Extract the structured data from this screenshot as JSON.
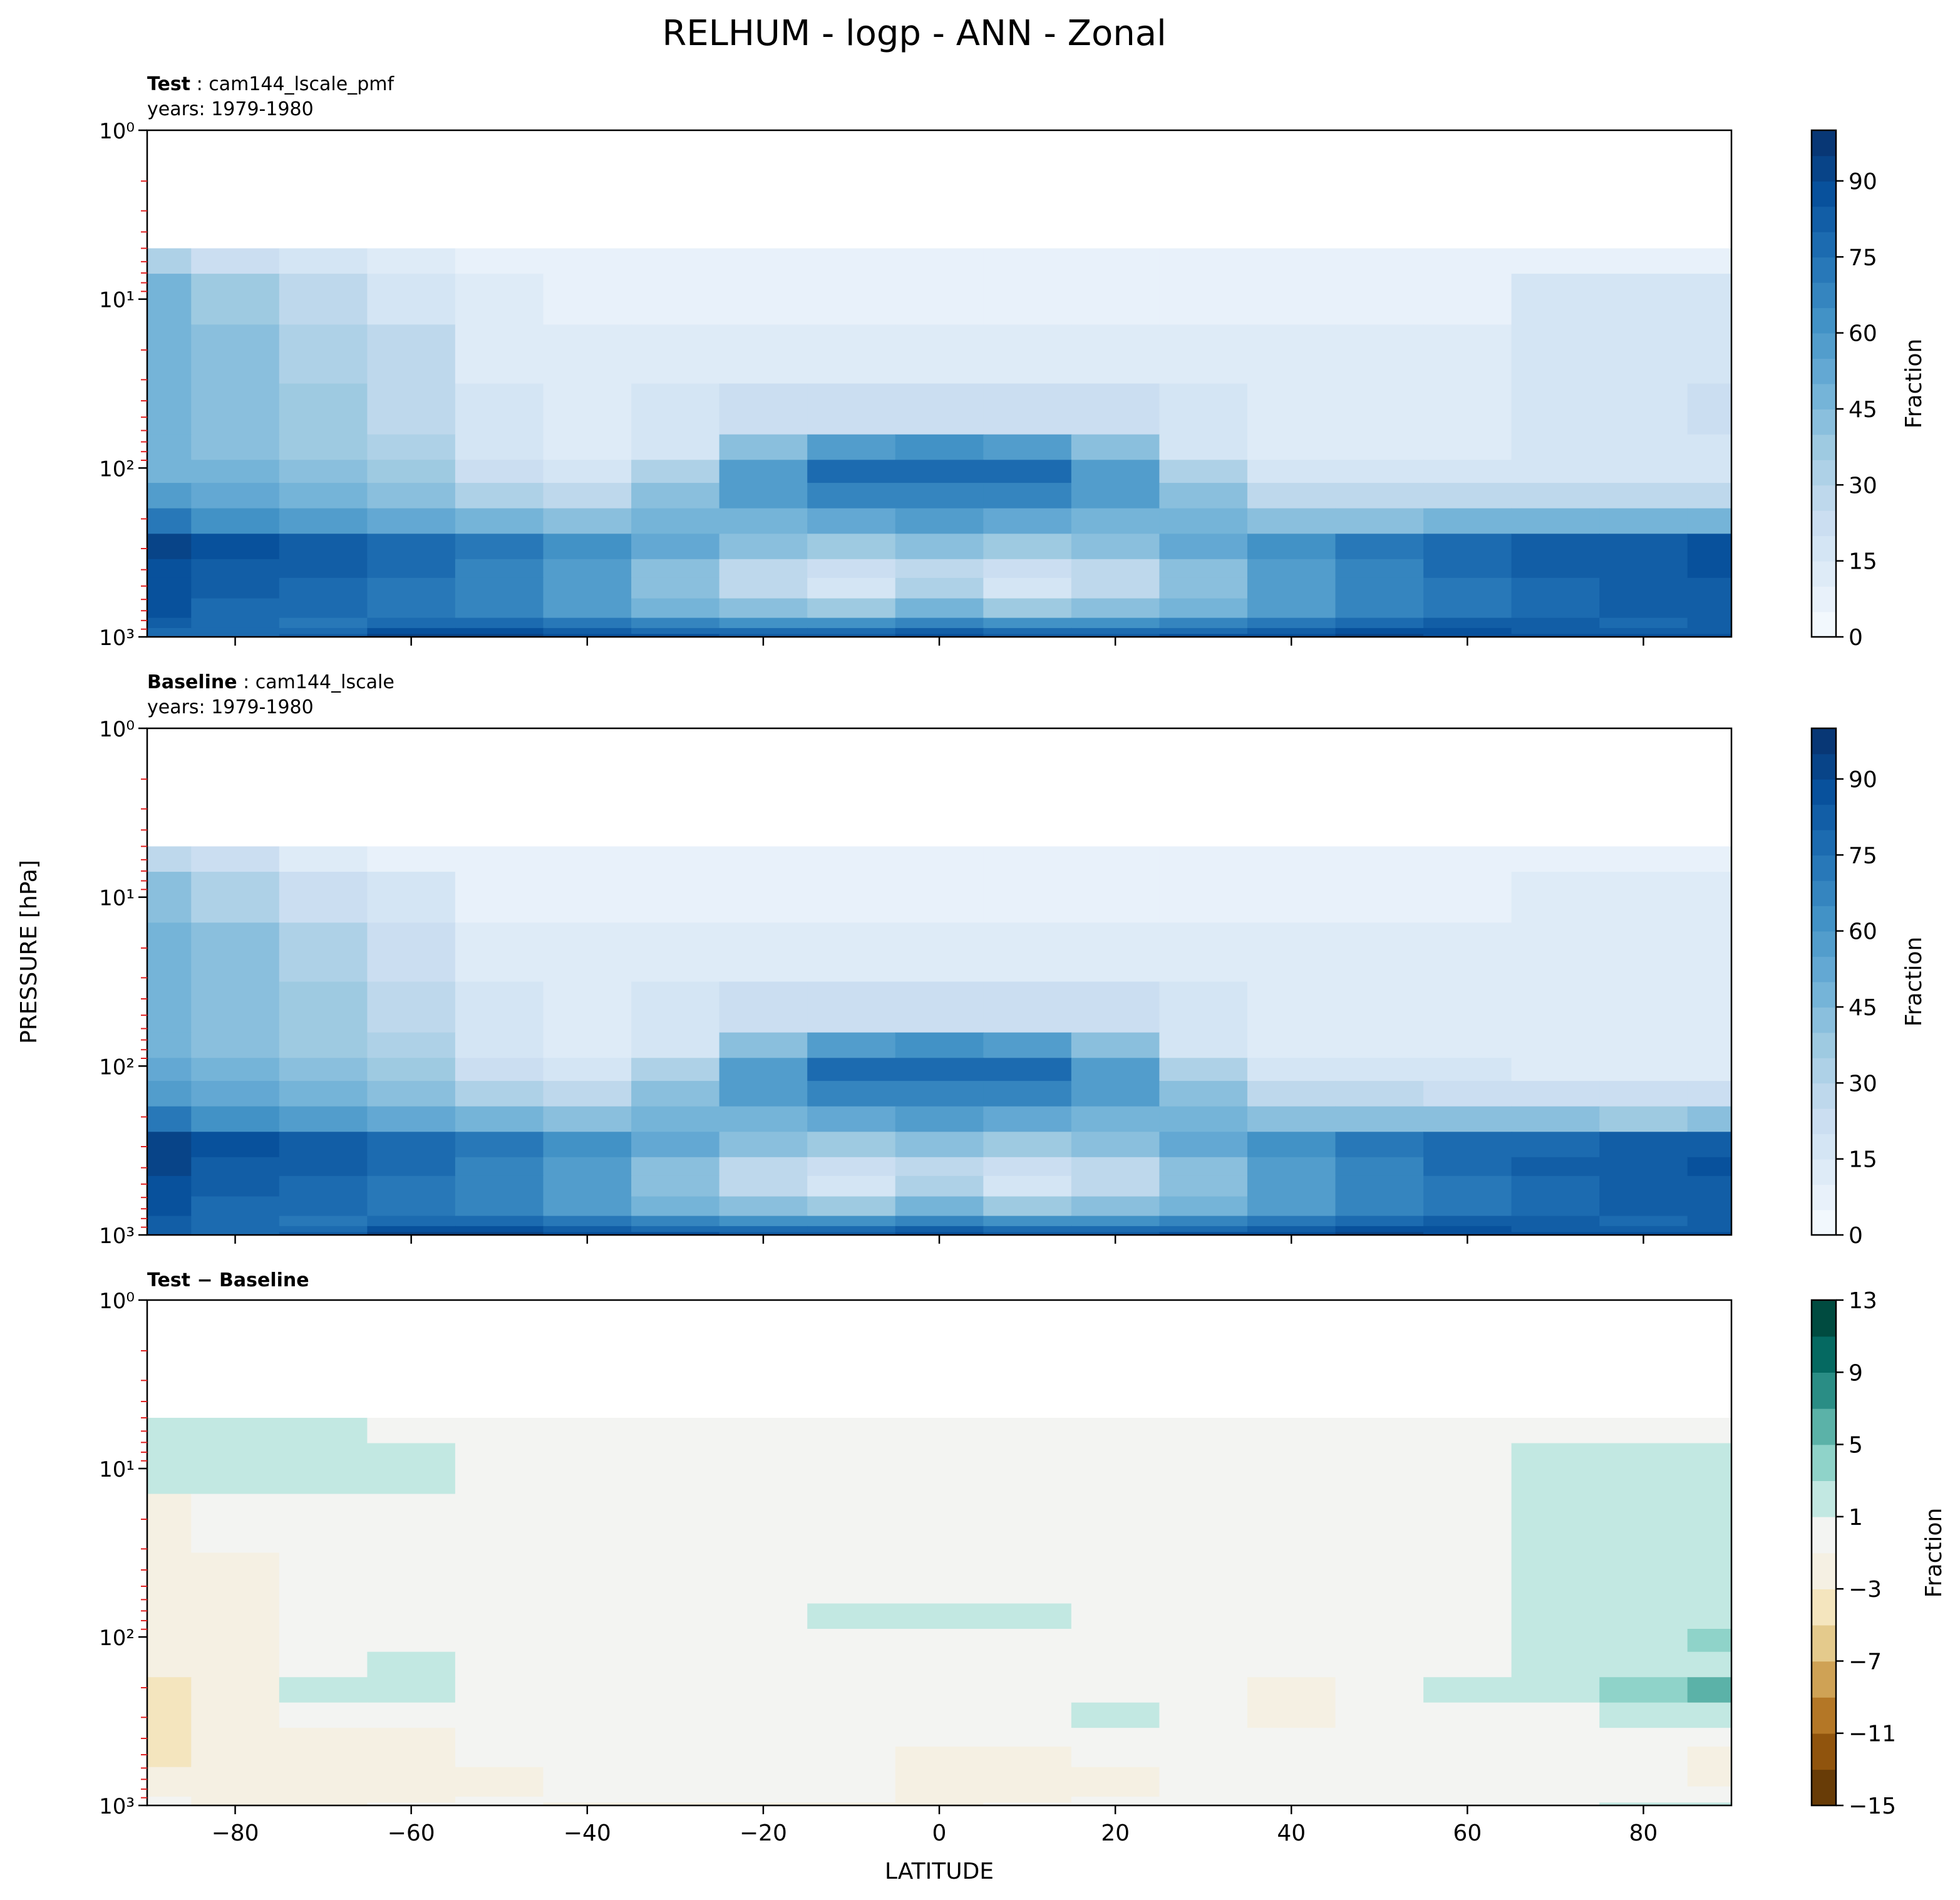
{
  "figure": {
    "title": "RELHUM - logp - ANN - Zonal",
    "ylabel": "PRESSURE [hPa]",
    "xlabel": "LATITUDE",
    "x_ticks": [
      -80,
      -60,
      -40,
      -20,
      0,
      20,
      40,
      60,
      80
    ]
  },
  "chart_data": [
    {
      "type": "heatmap",
      "panel": "test",
      "title_bold": "Test",
      "title_rest": ": cam144_lscale_pmf",
      "subtitle": "years: 1979-1980",
      "xlim": [
        -90,
        90
      ],
      "ylim": [
        1000,
        1
      ],
      "y_scale": "log",
      "y_ticks": [
        1,
        10,
        100,
        1000
      ],
      "y_tick_labels": [
        "10⁰",
        "10¹",
        "10²",
        "10³"
      ],
      "colormap": "Blues",
      "colorbar": {
        "label": "Fraction",
        "min": 0,
        "max": 100,
        "ticks": [
          0,
          15,
          30,
          45,
          60,
          75,
          90
        ]
      },
      "field": {
        "lat": [
          -90,
          -80,
          -70,
          -60,
          -50,
          -40,
          -30,
          -20,
          -10,
          0,
          10,
          20,
          30,
          40,
          50,
          60,
          70,
          80,
          90
        ],
        "lev": [
          5,
          10,
          20,
          50,
          80,
          100,
          150,
          200,
          300,
          400,
          500,
          700,
          850,
          925,
          1000
        ],
        "values": [
          [
            30,
            22,
            15,
            10,
            8,
            7,
            7,
            7,
            7,
            7,
            7,
            7,
            7,
            7,
            7,
            7,
            8,
            8,
            8
          ],
          [
            45,
            35,
            25,
            18,
            10,
            8,
            8,
            8,
            8,
            8,
            8,
            8,
            8,
            8,
            8,
            8,
            15,
            15,
            15
          ],
          [
            45,
            40,
            32,
            25,
            12,
            10,
            10,
            10,
            10,
            10,
            10,
            10,
            10,
            10,
            10,
            10,
            15,
            15,
            18
          ],
          [
            45,
            42,
            35,
            28,
            15,
            12,
            15,
            20,
            22,
            24,
            22,
            20,
            15,
            12,
            12,
            12,
            15,
            15,
            20
          ],
          [
            45,
            42,
            35,
            30,
            15,
            12,
            18,
            40,
            55,
            60,
            55,
            40,
            18,
            12,
            12,
            12,
            15,
            15,
            15
          ],
          [
            48,
            45,
            40,
            35,
            20,
            15,
            30,
            55,
            75,
            78,
            75,
            55,
            30,
            15,
            15,
            15,
            15,
            15,
            18
          ],
          [
            55,
            50,
            48,
            40,
            30,
            28,
            40,
            55,
            65,
            68,
            65,
            55,
            40,
            28,
            25,
            25,
            25,
            25,
            25
          ],
          [
            70,
            62,
            55,
            50,
            45,
            42,
            45,
            45,
            50,
            55,
            50,
            45,
            45,
            42,
            42,
            45,
            45,
            45,
            45
          ],
          [
            90,
            85,
            80,
            75,
            70,
            60,
            50,
            42,
            38,
            40,
            38,
            42,
            50,
            60,
            70,
            75,
            80,
            82,
            85
          ],
          [
            88,
            82,
            80,
            75,
            68,
            55,
            40,
            28,
            22,
            28,
            22,
            28,
            40,
            55,
            68,
            75,
            80,
            82,
            85
          ],
          [
            85,
            80,
            78,
            72,
            65,
            55,
            40,
            25,
            18,
            30,
            18,
            25,
            40,
            55,
            65,
            72,
            78,
            80,
            82
          ],
          [
            85,
            78,
            75,
            72,
            65,
            58,
            48,
            40,
            38,
            45,
            38,
            40,
            48,
            58,
            65,
            72,
            78,
            80,
            82
          ],
          [
            80,
            75,
            72,
            75,
            78,
            72,
            65,
            60,
            62,
            68,
            62,
            60,
            65,
            72,
            78,
            80,
            80,
            78,
            80
          ],
          [
            78,
            75,
            75,
            85,
            88,
            82,
            78,
            75,
            75,
            80,
            75,
            75,
            78,
            82,
            85,
            85,
            82,
            80,
            82
          ],
          [
            78,
            78,
            80,
            90,
            92,
            88,
            85,
            82,
            82,
            88,
            82,
            82,
            85,
            88,
            90,
            88,
            85,
            85,
            88
          ]
        ]
      }
    },
    {
      "type": "heatmap",
      "panel": "baseline",
      "title_bold": "Baseline",
      "title_rest": ": cam144_lscale",
      "subtitle": "years: 1979-1980",
      "xlim": [
        -90,
        90
      ],
      "ylim": [
        1000,
        1
      ],
      "y_scale": "log",
      "y_ticks": [
        1,
        10,
        100,
        1000
      ],
      "y_tick_labels": [
        "10⁰",
        "10¹",
        "10²",
        "10³"
      ],
      "colormap": "Blues",
      "colorbar": {
        "label": "Fraction",
        "min": 0,
        "max": 100,
        "ticks": [
          0,
          15,
          30,
          45,
          60,
          75,
          90
        ]
      },
      "field": {
        "lat": [
          -90,
          -80,
          -70,
          -60,
          -50,
          -40,
          -30,
          -20,
          -10,
          0,
          10,
          20,
          30,
          40,
          50,
          60,
          70,
          80,
          90
        ],
        "lev": [
          5,
          10,
          20,
          50,
          80,
          100,
          150,
          200,
          300,
          400,
          500,
          700,
          850,
          925,
          1000
        ],
        "values": [
          [
            28,
            20,
            13,
            9,
            7,
            7,
            7,
            7,
            7,
            7,
            7,
            7,
            7,
            7,
            7,
            7,
            7,
            7,
            7
          ],
          [
            42,
            33,
            23,
            17,
            9,
            8,
            8,
            8,
            8,
            8,
            8,
            8,
            8,
            8,
            8,
            8,
            10,
            10,
            10
          ],
          [
            48,
            42,
            32,
            24,
            12,
            10,
            10,
            10,
            10,
            10,
            10,
            10,
            10,
            10,
            10,
            10,
            12,
            12,
            12
          ],
          [
            48,
            44,
            36,
            28,
            15,
            12,
            15,
            20,
            22,
            24,
            22,
            20,
            15,
            12,
            12,
            12,
            12,
            12,
            12
          ],
          [
            46,
            43,
            36,
            30,
            15,
            12,
            18,
            40,
            55,
            60,
            55,
            40,
            18,
            12,
            12,
            12,
            12,
            12,
            12
          ],
          [
            50,
            46,
            40,
            35,
            20,
            15,
            30,
            55,
            75,
            78,
            75,
            55,
            30,
            15,
            15,
            15,
            12,
            12,
            12
          ],
          [
            58,
            52,
            46,
            40,
            30,
            28,
            40,
            55,
            65,
            68,
            65,
            55,
            40,
            28,
            25,
            22,
            22,
            20,
            20
          ],
          [
            72,
            64,
            55,
            50,
            45,
            42,
            45,
            45,
            50,
            55,
            50,
            45,
            45,
            42,
            42,
            42,
            40,
            38,
            40
          ],
          [
            92,
            86,
            80,
            75,
            70,
            60,
            50,
            42,
            38,
            40,
            38,
            42,
            50,
            60,
            70,
            75,
            78,
            80,
            82
          ],
          [
            90,
            83,
            80,
            75,
            68,
            55,
            40,
            28,
            22,
            28,
            22,
            28,
            40,
            55,
            68,
            75,
            80,
            82,
            85
          ],
          [
            87,
            81,
            78,
            72,
            65,
            55,
            40,
            25,
            18,
            30,
            18,
            25,
            40,
            55,
            65,
            72,
            78,
            80,
            82
          ],
          [
            87,
            79,
            75,
            72,
            65,
            58,
            48,
            40,
            38,
            45,
            38,
            40,
            48,
            58,
            65,
            72,
            78,
            80,
            82
          ],
          [
            82,
            76,
            72,
            75,
            78,
            72,
            65,
            60,
            62,
            68,
            62,
            60,
            65,
            72,
            78,
            80,
            80,
            78,
            80
          ],
          [
            80,
            76,
            75,
            85,
            88,
            82,
            78,
            75,
            75,
            80,
            75,
            75,
            78,
            82,
            85,
            85,
            82,
            80,
            82
          ],
          [
            80,
            79,
            80,
            90,
            92,
            88,
            85,
            82,
            82,
            88,
            82,
            82,
            85,
            88,
            90,
            88,
            85,
            85,
            88
          ]
        ]
      }
    },
    {
      "type": "heatmap",
      "panel": "difference",
      "title_bold": "Test − Baseline",
      "title_rest": "",
      "subtitle": "",
      "xlim": [
        -90,
        90
      ],
      "ylim": [
        1000,
        1
      ],
      "y_scale": "log",
      "y_ticks": [
        1,
        10,
        100,
        1000
      ],
      "y_tick_labels": [
        "10⁰",
        "10¹",
        "10²",
        "10³"
      ],
      "colormap": "BrBG",
      "colorbar": {
        "label": "Fraction",
        "levels": [
          -15,
          -13,
          -11,
          -9,
          -7,
          -5,
          -3,
          -1,
          1,
          3,
          5,
          7,
          9,
          11,
          13
        ],
        "ticks": [
          -15,
          -11,
          -7,
          -3,
          1,
          5,
          9,
          13
        ],
        "tick_labels": [
          "−15",
          "−11",
          "−7",
          "−3",
          "1",
          "5",
          "9",
          "13"
        ]
      },
      "field": {
        "lat": [
          -90,
          -80,
          -70,
          -60,
          -50,
          -40,
          -30,
          -20,
          -10,
          0,
          10,
          20,
          30,
          40,
          50,
          60,
          70,
          80,
          90
        ],
        "lev": [
          5,
          10,
          20,
          50,
          80,
          100,
          150,
          200,
          300,
          400,
          500,
          700,
          850,
          925,
          1000
        ],
        "values": [
          [
            1.5,
            1.5,
            1.5,
            0.5,
            0,
            0,
            0,
            0,
            0,
            0,
            0,
            0,
            0,
            0,
            0,
            0,
            0.5,
            0.5,
            0.5
          ],
          [
            1.5,
            1.6,
            1.5,
            1.1,
            0.2,
            0,
            0,
            0,
            0,
            0,
            0,
            0,
            0,
            0,
            0,
            0,
            1.5,
            1.5,
            1.5
          ],
          [
            -1.5,
            -0.5,
            0,
            0,
            0,
            0,
            0,
            0,
            0,
            0,
            0,
            0,
            0,
            0,
            0,
            0,
            1.5,
            1.5,
            1.8
          ],
          [
            -1.5,
            -1.5,
            0,
            0,
            0,
            0,
            0,
            0,
            0,
            0,
            0,
            0,
            0,
            0,
            0,
            0,
            1.5,
            1.8,
            2.2
          ],
          [
            -1.5,
            -1.5,
            0,
            0,
            0,
            0,
            0,
            0,
            1.3,
            1.3,
            1.3,
            0.5,
            0,
            0,
            0,
            0,
            1.6,
            2.2,
            2.5
          ],
          [
            -2.2,
            -1.5,
            0,
            0,
            0,
            0,
            0,
            0,
            0,
            0,
            0,
            0,
            0,
            0,
            0,
            0,
            2.0,
            2.5,
            3.0
          ],
          [
            -2.8,
            -1.5,
            0.8,
            1.2,
            0,
            0,
            0,
            0,
            0,
            0,
            0,
            0,
            0,
            0,
            0,
            0.5,
            1.5,
            2.0,
            2.5
          ],
          [
            -3.5,
            -1.5,
            1.2,
            1.3,
            0,
            0,
            0.3,
            0,
            0,
            0,
            0,
            0,
            0,
            -1.5,
            0,
            1.2,
            2.0,
            3.5,
            6.0
          ],
          [
            -4.0,
            -1.5,
            0,
            0,
            0,
            0,
            0,
            0,
            0,
            0,
            0,
            1.3,
            0,
            -1.5,
            0,
            0,
            0.5,
            1.5,
            1.5
          ],
          [
            -5.0,
            -2.5,
            -1.5,
            -1.5,
            0,
            0,
            0,
            0,
            0,
            0,
            0,
            0,
            0,
            0,
            0,
            0,
            0,
            0,
            0
          ],
          [
            -3.5,
            -2.0,
            -1.5,
            -1.5,
            0,
            0,
            0,
            0,
            0,
            -1.5,
            -1.5,
            0,
            0,
            0,
            0,
            0,
            0,
            0,
            -1.5
          ],
          [
            -2.5,
            -1.5,
            -1.5,
            -1.5,
            -1.5,
            0,
            0,
            0,
            0,
            -1.5,
            -1.5,
            -1.5,
            0,
            0,
            0,
            0,
            0,
            0,
            -1.5
          ],
          [
            -1.5,
            -1.5,
            -1.5,
            -1.5,
            -1.5,
            0,
            0,
            0,
            0,
            -1.5,
            -1.5,
            -1.5,
            0,
            0,
            0,
            0,
            0,
            0,
            0
          ],
          [
            0,
            -1.5,
            -1.5,
            -1.5,
            0,
            0,
            0,
            0,
            0,
            -1.5,
            -1.5,
            0,
            0,
            0,
            0,
            0,
            0,
            0,
            0
          ],
          [
            0,
            -1.5,
            -1.5,
            0,
            0,
            -1.5,
            -1.5,
            -1.5,
            -1.5,
            -1.5,
            0,
            0,
            0,
            0,
            0,
            0,
            0,
            1.5,
            1.5
          ]
        ]
      }
    }
  ]
}
